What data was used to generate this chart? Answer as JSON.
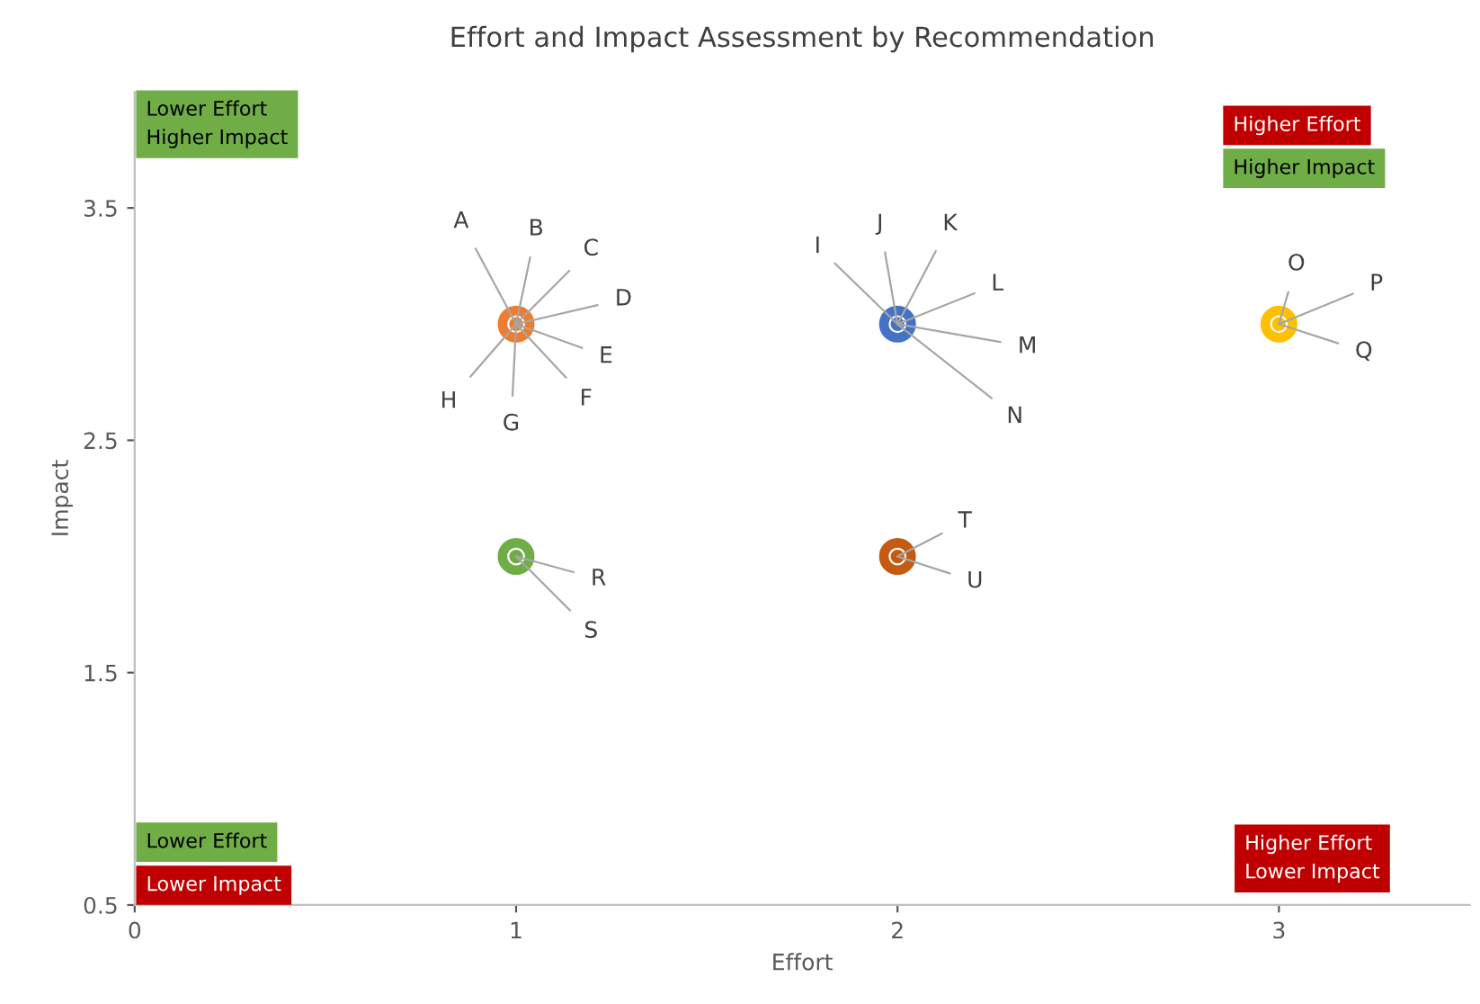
{
  "chart_data": {
    "type": "scatter",
    "title": "Effort and Impact Assessment by Recommendation",
    "xlabel": "Effort",
    "ylabel": "Impact",
    "xlim": [
      0,
      3.5
    ],
    "xticks": [
      0,
      1,
      2,
      3
    ],
    "ylim": [
      0.5,
      4
    ],
    "yticks": [
      0.5,
      1.5,
      2.5,
      3.5
    ],
    "grid": false,
    "legend": false,
    "marker": "circle",
    "series": [
      {
        "color": "#ed7d31",
        "x": [
          1
        ],
        "values": [
          3
        ]
      },
      {
        "color": "#4472c4",
        "x": [
          2
        ],
        "values": [
          3
        ]
      },
      {
        "color": "#ffc000",
        "x": [
          3
        ],
        "values": [
          3
        ]
      },
      {
        "color": "#70ad47",
        "x": [
          1
        ],
        "values": [
          2
        ]
      },
      {
        "color": "#c55a11",
        "x": [
          2
        ],
        "values": [
          2
        ]
      }
    ],
    "annotations": [
      {
        "text": "A",
        "x": 1,
        "y": 3
      },
      {
        "text": "B",
        "x": 1,
        "y": 3
      },
      {
        "text": "C",
        "x": 1,
        "y": 3
      },
      {
        "text": "D",
        "x": 1,
        "y": 3
      },
      {
        "text": "E",
        "x": 1,
        "y": 3
      },
      {
        "text": "F",
        "x": 1,
        "y": 3
      },
      {
        "text": "G",
        "x": 1,
        "y": 3
      },
      {
        "text": "H",
        "x": 1,
        "y": 3
      },
      {
        "text": "I",
        "x": 2,
        "y": 3
      },
      {
        "text": "J",
        "x": 2,
        "y": 3
      },
      {
        "text": "K",
        "x": 2,
        "y": 3
      },
      {
        "text": "L",
        "x": 2,
        "y": 3
      },
      {
        "text": "M",
        "x": 2,
        "y": 3
      },
      {
        "text": "N",
        "x": 2,
        "y": 3
      },
      {
        "text": "O",
        "x": 3,
        "y": 3
      },
      {
        "text": "P",
        "x": 3,
        "y": 3
      },
      {
        "text": "Q",
        "x": 3,
        "y": 3
      },
      {
        "text": "R",
        "x": 1,
        "y": 2
      },
      {
        "text": "S",
        "x": 1,
        "y": 2
      },
      {
        "text": "T",
        "x": 2,
        "y": 2
      },
      {
        "text": "U",
        "x": 2,
        "y": 2
      },
      "Lower Effort\nHigher Impact",
      "Higher Effort",
      "Higher Impact",
      "Lower Effort",
      "Lower Impact",
      "Higher Effort\nLower Impact"
    ]
  }
}
